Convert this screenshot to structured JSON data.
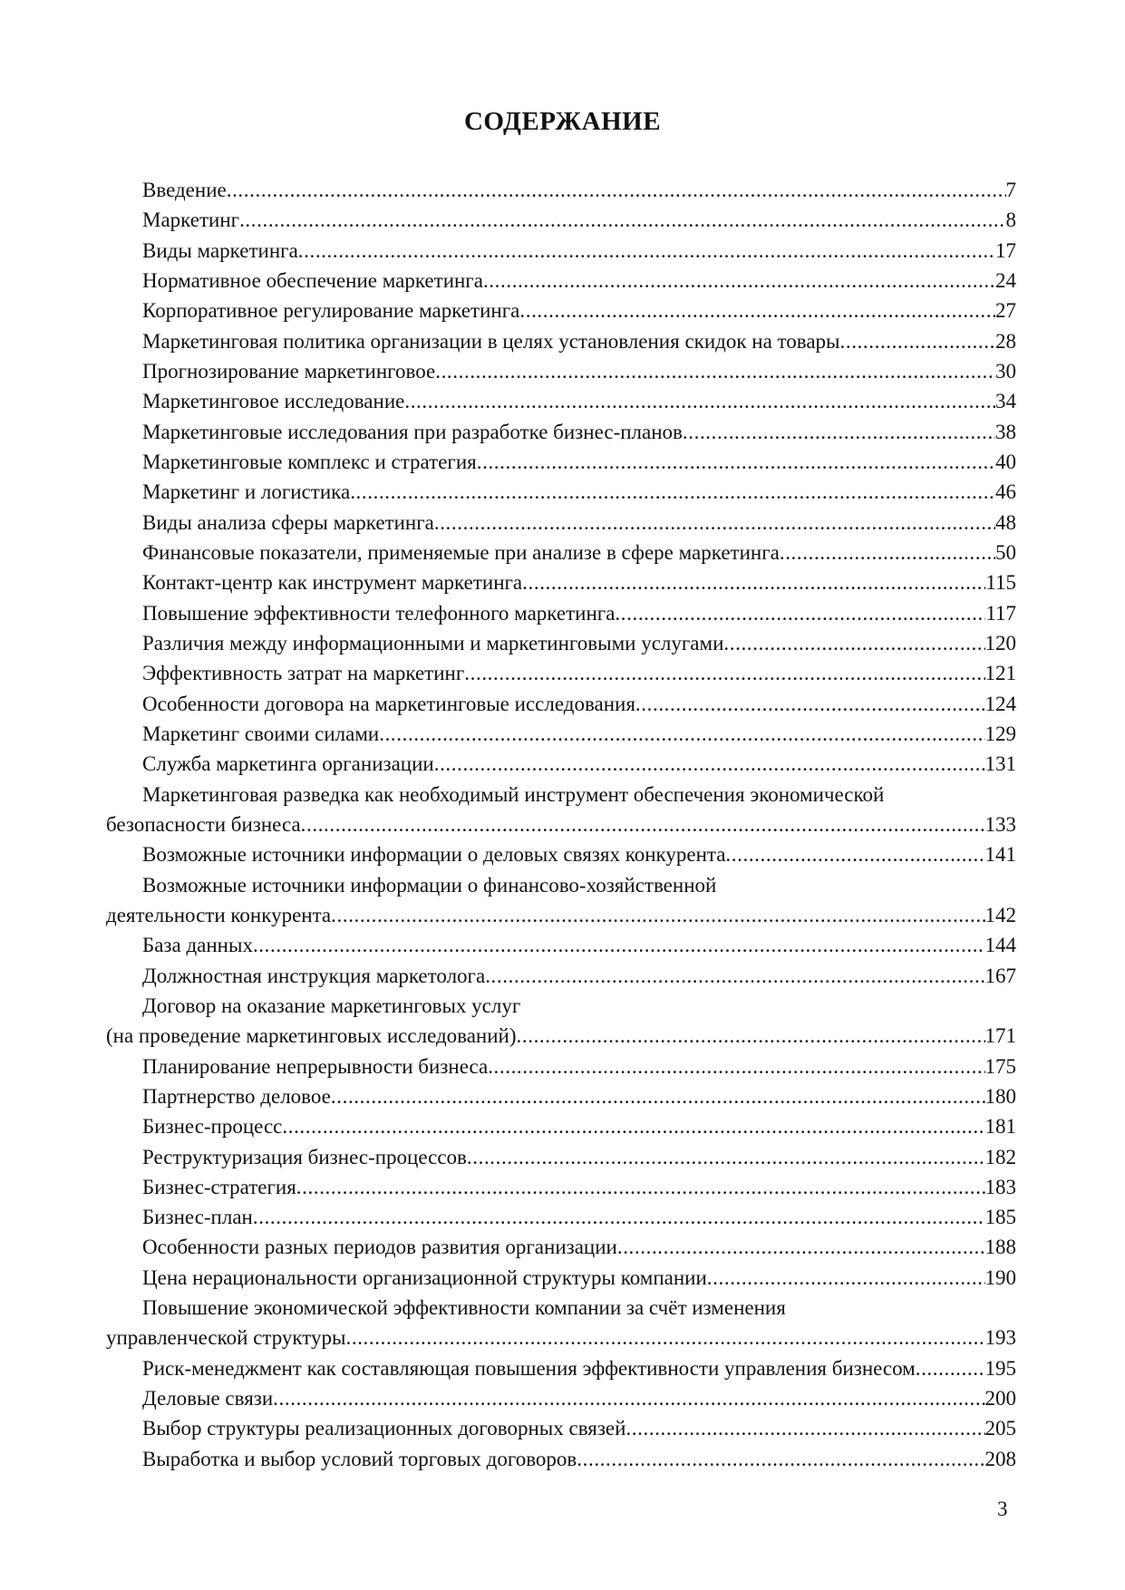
{
  "title": "СОДЕРЖАНИЕ",
  "entries": [
    {
      "lines": [
        "Введение"
      ],
      "page": "7"
    },
    {
      "lines": [
        "Маркетинг"
      ],
      "page": "8"
    },
    {
      "lines": [
        "Виды маркетинга"
      ],
      "page": "17"
    },
    {
      "lines": [
        "Нормативное обеспечение маркетинга"
      ],
      "page": "24"
    },
    {
      "lines": [
        "Корпоративное регулирование маркетинга "
      ],
      "page": "27"
    },
    {
      "lines": [
        "Маркетинговая политика организации в целях установления скидок на товары "
      ],
      "page": "28"
    },
    {
      "lines": [
        "Прогнозирование маркетинговое "
      ],
      "page": "30"
    },
    {
      "lines": [
        "Маркетинговое исследование"
      ],
      "page": "34"
    },
    {
      "lines": [
        "Маркетинговые исследования при разработке бизнес-планов"
      ],
      "page": "38"
    },
    {
      "lines": [
        "Маркетинговые комплекс и стратегия"
      ],
      "page": "40"
    },
    {
      "lines": [
        "Маркетинг и логистика "
      ],
      "page": "46"
    },
    {
      "lines": [
        "Виды анализа сферы маркетинга"
      ],
      "page": "48"
    },
    {
      "lines": [
        "Финансовые показатели, применяемые при анализе в сфере маркетинга "
      ],
      "page": "50"
    },
    {
      "lines": [
        "Контакт-центр как инструмент маркетинга "
      ],
      "page": "115"
    },
    {
      "lines": [
        "Повышение эффективности телефонного маркетинга"
      ],
      "page": "117"
    },
    {
      "lines": [
        "Различия между информационными и маркетинговыми услугами"
      ],
      "page": "120"
    },
    {
      "lines": [
        "Эффективность затрат на маркетинг "
      ],
      "page": "121"
    },
    {
      "lines": [
        "Особенности договора на маркетинговые исследования"
      ],
      "page": "124"
    },
    {
      "lines": [
        "Маркетинг своими силами "
      ],
      "page": "129"
    },
    {
      "lines": [
        "Служба маркетинга организации "
      ],
      "page": "131"
    },
    {
      "lines": [
        "Маркетинговая разведка как необходимый инструмент  обеспечения экономической",
        "безопасности бизнеса"
      ],
      "page": "133"
    },
    {
      "lines": [
        "Возможные источники информации о деловых связях конкурента "
      ],
      "page": "141"
    },
    {
      "lines": [
        "Возможные источники информации о финансово-хозяйственной",
        "деятельности конкурента "
      ],
      "page": "142"
    },
    {
      "lines": [
        "База данных "
      ],
      "page": "144"
    },
    {
      "lines": [
        "Должностная инструкция маркетолога"
      ],
      "page": "167"
    },
    {
      "lines": [
        "Договор на оказание маркетинговых услуг",
        "(на проведение маркетинговых исследований)"
      ],
      "page": "171"
    },
    {
      "lines": [
        "Планирование непрерывности бизнеса "
      ],
      "page": "175"
    },
    {
      "lines": [
        "Партнерство деловое "
      ],
      "page": "180"
    },
    {
      "lines": [
        "Бизнес-процесс"
      ],
      "page": "181"
    },
    {
      "lines": [
        "Реструктуризация бизнес-процессов "
      ],
      "page": "182"
    },
    {
      "lines": [
        "Бизнес-стратегия "
      ],
      "page": "183"
    },
    {
      "lines": [
        "Бизнес-план "
      ],
      "page": "185"
    },
    {
      "lines": [
        "Особенности разных периодов развития организации "
      ],
      "page": "188"
    },
    {
      "lines": [
        "Цена нерациональности организационной структуры компании "
      ],
      "page": "190"
    },
    {
      "lines": [
        "Повышение экономической эффективности компании за счёт изменения",
        "управленческой структуры "
      ],
      "page": "193"
    },
    {
      "lines": [
        "Риск-менеджмент как составляющая повышения эффективности управления бизнесом"
      ],
      "page": "195"
    },
    {
      "lines": [
        "Деловые связи "
      ],
      "page": "200"
    },
    {
      "lines": [
        "Выбор структуры реализационных договорных связей"
      ],
      "page": "205"
    },
    {
      "lines": [
        "Выработка и выбор условий торговых договоров"
      ],
      "page": "208"
    }
  ],
  "page_number": "3"
}
